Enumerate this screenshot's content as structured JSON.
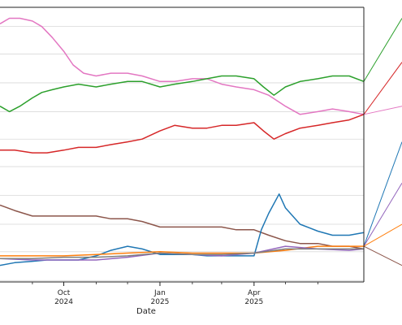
{
  "chart_data": {
    "type": "line",
    "title": "",
    "xlabel": "Date",
    "ylabel": "",
    "grid": "horizontal",
    "x_ticks": [
      {
        "date": "2024-10-01",
        "label": "Oct",
        "sublabel": "2024"
      },
      {
        "date": "2025-01-01",
        "label": "Jan",
        "sublabel": "2025"
      },
      {
        "date": "2025-04-01",
        "label": "Apr",
        "sublabel": "2025"
      }
    ],
    "x_minor_ticks": [
      "2024-09-01",
      "2024-11-01",
      "2024-12-01",
      "2025-02-01",
      "2025-03-01",
      "2025-05-01",
      "2025-06-01"
    ],
    "xlim": [
      "2024-08-01",
      "2025-07-15"
    ],
    "ylim": [
      0,
      100
    ],
    "y_gridlines": [
      0.5,
      11,
      21,
      31.5,
      42,
      52,
      62,
      72.5,
      83,
      93
    ],
    "series": [
      {
        "color": "#e377c2",
        "x": [
          "2024-08-01",
          "2024-08-10",
          "2024-08-20",
          "2024-09-01",
          "2024-09-10",
          "2024-09-20",
          "2024-10-01",
          "2024-10-10",
          "2024-10-20",
          "2024-11-01",
          "2024-11-15",
          "2024-12-01",
          "2024-12-15",
          "2025-01-01",
          "2025-01-15",
          "2025-02-01",
          "2025-02-15",
          "2025-03-01",
          "2025-03-15",
          "2025-04-01",
          "2025-04-15",
          "2025-05-01",
          "2025-05-15",
          "2025-06-01",
          "2025-06-15",
          "2025-07-01",
          "2025-07-15"
        ],
        "y": [
          94,
          96,
          96,
          95,
          93,
          89,
          84,
          79,
          76,
          75,
          76,
          76,
          75,
          73,
          73,
          74,
          74,
          72,
          71,
          70,
          68,
          64,
          61,
          62,
          63,
          62,
          61
        ]
      },
      {
        "color": "#2ca02c",
        "x": [
          "2024-08-01",
          "2024-08-10",
          "2024-08-20",
          "2024-09-01",
          "2024-09-10",
          "2024-09-20",
          "2024-10-01",
          "2024-10-15",
          "2024-11-01",
          "2024-11-15",
          "2024-12-01",
          "2024-12-15",
          "2025-01-01",
          "2025-01-15",
          "2025-02-01",
          "2025-02-15",
          "2025-03-01",
          "2025-03-15",
          "2025-04-01",
          "2025-04-10",
          "2025-04-20",
          "2025-05-01",
          "2025-05-15",
          "2025-06-01",
          "2025-06-15",
          "2025-07-01",
          "2025-07-15"
        ],
        "y": [
          64,
          62,
          64,
          67,
          69,
          70,
          71,
          72,
          71,
          72,
          73,
          73,
          71,
          72,
          73,
          74,
          75,
          75,
          74,
          71,
          68,
          71,
          73,
          74,
          75,
          75,
          73
        ]
      },
      {
        "color": "#d62728",
        "x": [
          "2024-08-01",
          "2024-08-15",
          "2024-09-01",
          "2024-09-15",
          "2024-10-01",
          "2024-10-15",
          "2024-11-01",
          "2024-11-15",
          "2024-12-01",
          "2024-12-15",
          "2025-01-01",
          "2025-01-15",
          "2025-02-01",
          "2025-02-15",
          "2025-03-01",
          "2025-03-15",
          "2025-04-01",
          "2025-04-10",
          "2025-04-20",
          "2025-05-01",
          "2025-05-15",
          "2025-06-01",
          "2025-06-15",
          "2025-07-01",
          "2025-07-15"
        ],
        "y": [
          48,
          48,
          47,
          47,
          48,
          49,
          49,
          50,
          51,
          52,
          55,
          57,
          56,
          56,
          57,
          57,
          58,
          55,
          52,
          54,
          56,
          57,
          58,
          59,
          61
        ]
      },
      {
        "color": "#8c564b",
        "x": [
          "2024-08-01",
          "2024-08-15",
          "2024-09-01",
          "2024-09-15",
          "2024-10-01",
          "2024-10-15",
          "2024-11-01",
          "2024-11-15",
          "2024-12-01",
          "2024-12-15",
          "2025-01-01",
          "2025-01-15",
          "2025-02-01",
          "2025-02-15",
          "2025-03-01",
          "2025-03-15",
          "2025-04-01",
          "2025-04-15",
          "2025-05-01",
          "2025-05-15",
          "2025-06-01",
          "2025-06-15",
          "2025-07-01",
          "2025-07-15"
        ],
        "y": [
          28,
          26,
          24,
          24,
          24,
          24,
          24,
          23,
          23,
          22,
          20,
          20,
          20,
          20,
          20,
          19,
          19,
          17,
          15,
          14,
          14,
          13,
          13,
          12
        ]
      },
      {
        "color": "#1f77b4",
        "x": [
          "2024-08-01",
          "2024-08-15",
          "2024-09-01",
          "2024-09-15",
          "2024-10-01",
          "2024-10-15",
          "2024-11-01",
          "2024-11-15",
          "2024-12-01",
          "2024-12-15",
          "2025-01-01",
          "2025-01-15",
          "2025-02-01",
          "2025-02-15",
          "2025-03-01",
          "2025-03-20",
          "2025-04-01",
          "2025-04-08",
          "2025-04-15",
          "2025-04-25",
          "2025-05-01",
          "2025-05-15",
          "2025-06-01",
          "2025-06-15",
          "2025-07-01",
          "2025-07-15"
        ],
        "y": [
          6,
          7,
          7.5,
          8,
          8,
          8,
          9.5,
          11.5,
          13,
          12,
          10,
          10,
          10,
          9.5,
          9.5,
          9.5,
          9.5,
          19,
          25,
          32,
          27,
          21,
          18.5,
          17,
          17,
          18
        ]
      },
      {
        "color": "#ff7f0e",
        "x": [
          "2024-08-01",
          "2024-09-01",
          "2024-10-01",
          "2024-11-01",
          "2024-12-01",
          "2025-01-01",
          "2025-02-01",
          "2025-03-01",
          "2025-04-01",
          "2025-05-01",
          "2025-06-01",
          "2025-07-01",
          "2025-07-15"
        ],
        "y": [
          9.5,
          9.5,
          9.5,
          10,
          10.5,
          11,
          10.5,
          10.5,
          10.5,
          11.5,
          13,
          13,
          13
        ]
      },
      {
        "color": "#9467bd",
        "x": [
          "2024-08-01",
          "2024-09-01",
          "2024-10-01",
          "2024-11-01",
          "2024-12-01",
          "2025-01-01",
          "2025-02-01",
          "2025-03-01",
          "2025-04-01",
          "2025-05-01",
          "2025-06-01",
          "2025-07-01",
          "2025-07-15"
        ],
        "y": [
          8.5,
          8,
          8,
          8,
          9,
          10.5,
          10,
          9.5,
          10.5,
          13,
          12,
          11.5,
          12
        ]
      },
      {
        "color": "#7f7f7f",
        "x": [
          "2024-08-01",
          "2024-09-01",
          "2024-10-01",
          "2024-11-01",
          "2024-12-01",
          "2025-01-01",
          "2025-02-01",
          "2025-03-01",
          "2025-04-01",
          "2025-05-01",
          "2025-06-01",
          "2025-07-01",
          "2025-07-15"
        ],
        "y": [
          8.5,
          8.5,
          9,
          9,
          9.5,
          10.5,
          10,
          10,
          10.5,
          12,
          12,
          12,
          12
        ]
      }
    ],
    "connectors": [
      {
        "color": "#2ca02c",
        "from": [
          "2025-07-15",
          73
        ],
        "to_y": 96
      },
      {
        "color": "#d62728",
        "from": [
          "2025-07-15",
          61
        ],
        "to_y": 80
      },
      {
        "color": "#e377c2",
        "from": [
          "2025-07-15",
          61
        ],
        "to_y": 64
      },
      {
        "color": "#1f77b4",
        "from": [
          "2025-07-15",
          13
        ],
        "to_y": 51
      },
      {
        "color": "#9467bd",
        "from": [
          "2025-07-15",
          13
        ],
        "to_y": 36
      },
      {
        "color": "#ff7f0e",
        "from": [
          "2025-07-15",
          13
        ],
        "to_y": 21
      },
      {
        "color": "#8c564b",
        "from": [
          "2025-07-15",
          13
        ],
        "to_y": 6
      }
    ]
  }
}
